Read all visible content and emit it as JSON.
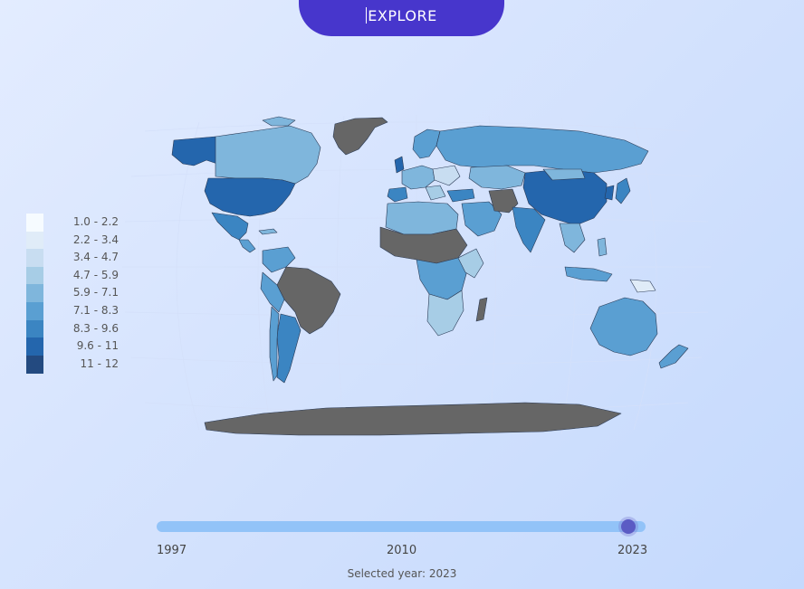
{
  "button": {
    "label": "EXPLORE"
  },
  "legend": {
    "items": [
      {
        "label": "1.0 - 2.2",
        "color": "#f6fbff"
      },
      {
        "label": "2.2 - 3.4",
        "color": "#e0ecf8"
      },
      {
        "label": "3.4 - 4.7",
        "color": "#c8ddf1"
      },
      {
        "label": "4.7 - 5.9",
        "color": "#a7cde6"
      },
      {
        "label": "5.9 - 7.1",
        "color": "#7fb6dc"
      },
      {
        "label": "7.1 - 8.3",
        "color": "#5a9fd2"
      },
      {
        "label": "8.3 - 9.6",
        "color": "#3b85c2"
      },
      {
        "label": "9.6 - 11",
        "color": "#2466ad"
      },
      {
        "label": "11 - 12",
        "color": "#234a80"
      }
    ]
  },
  "colors": {
    "no_data": "#666666",
    "ocean_grid": "#d9e5fc",
    "button": "#4736cc",
    "slider_track": "#92c3f8",
    "slider_thumb": "#5b5bc4"
  },
  "slider": {
    "min_label": "1997",
    "mid_label": "2010",
    "max_label": "2023",
    "min": 1997,
    "max": 2023,
    "value": 2023
  },
  "selected_year_text": "Selected year: 2023"
}
